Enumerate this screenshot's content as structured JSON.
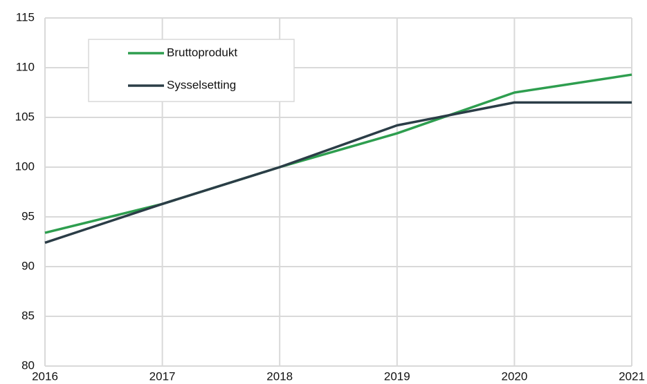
{
  "chart_data": {
    "type": "line",
    "x": [
      2016,
      2017,
      2018,
      2019,
      2020,
      2021
    ],
    "series": [
      {
        "name": "Bruttoprodukt",
        "color": "#2e9e4f",
        "values": [
          93.4,
          96.3,
          100,
          103.4,
          107.5,
          109.3
        ]
      },
      {
        "name": "Sysselsetting",
        "color": "#2b3d47",
        "values": [
          92.4,
          96.3,
          100,
          104.2,
          106.5,
          106.5
        ]
      }
    ],
    "xlim": [
      2016,
      2021
    ],
    "xticks": [
      2016,
      2017,
      2018,
      2019,
      2020,
      2021
    ],
    "ylim": [
      80,
      115
    ],
    "yticks": [
      80,
      85,
      90,
      95,
      100,
      105,
      110,
      115
    ],
    "grid": true,
    "legend": "upper left"
  }
}
